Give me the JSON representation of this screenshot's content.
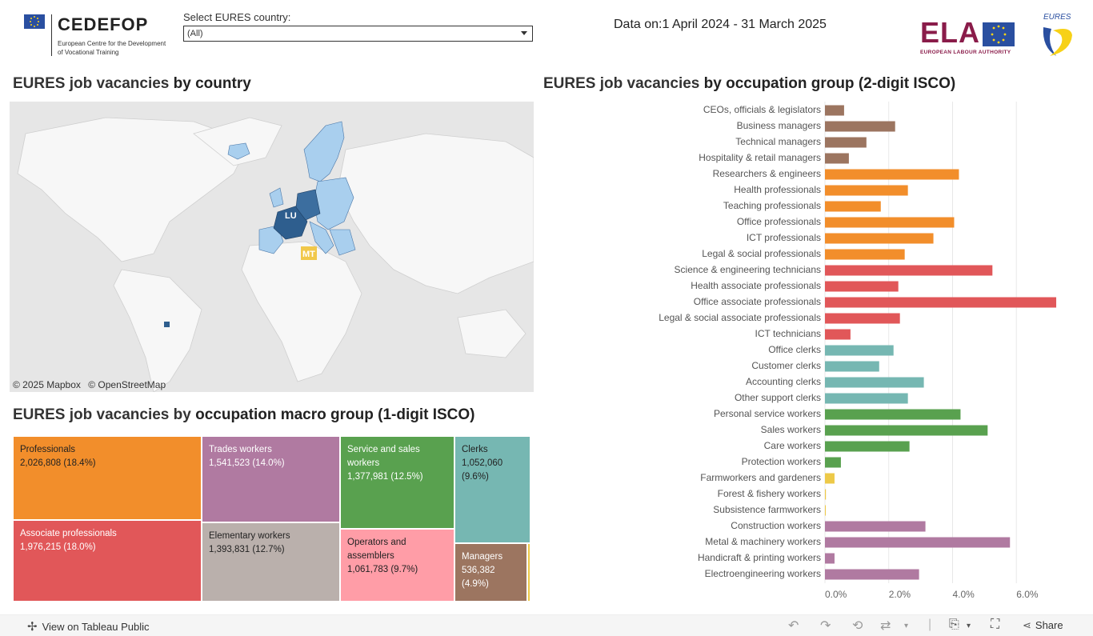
{
  "header": {
    "cedefop_logo": "CEDEFOP",
    "cedefop_sub": "European Centre for the Development of Vocational Training",
    "select_label": "Select EURES country:",
    "select_value": "(All)",
    "data_on": "Data on:1 April 2024 - 31 March 2025",
    "ela_logo": "ELA",
    "ela_sub": "EUROPEAN LABOUR AUTHORITY",
    "eures_logo": "EURES"
  },
  "map_section": {
    "title_light": "EURES job vacancies ",
    "title_bold": "by country",
    "label_lu": "LU",
    "label_mt": "MT",
    "attribution_mapbox": "© 2025 Mapbox",
    "attribution_osm": "© OpenStreetMap"
  },
  "bar_section": {
    "title_light": "EURES job vacancies ",
    "title_bold": "by occupation group (2-digit ISCO)"
  },
  "treemap_section": {
    "title_light": "EURES job vacancies by ",
    "title_bold": "occupation macro group (1-digit ISCO)"
  },
  "colors": {
    "managers": "#9c7560",
    "professionals": "#f28e2b",
    "technicians": "#e15759",
    "clerks": "#76b7b2",
    "service": "#59a14f",
    "agriculture": "#edc948",
    "trades": "#b07aa1",
    "operators": "#ff9da7",
    "elementary": "#bab0ac"
  },
  "chart_data": [
    {
      "type": "bar",
      "orientation": "horizontal",
      "title": "EURES job vacancies by occupation group (2-digit ISCO)",
      "xlabel": "",
      "ylabel": "",
      "xlim": [
        0,
        7.5
      ],
      "x_ticks": [
        "0.0%",
        "2.0%",
        "4.0%",
        "6.0%"
      ],
      "x_tick_values": [
        0,
        2,
        4,
        6
      ],
      "grid": true,
      "categories": [
        "CEOs, officials & legislators",
        "Business managers",
        "Technical managers",
        "Hospitality & retail managers",
        "Researchers & engineers",
        "Health professionals",
        "Teaching professionals",
        "Office professionals",
        "ICT professionals",
        "Legal & social professionals",
        "Science & engineering technicians",
        "Health associate professionals",
        "Office associate professionals",
        "Legal & social associate professionals",
        "ICT technicians",
        "Office clerks",
        "Customer clerks",
        "Accounting clerks",
        "Other support clerks",
        "Personal service workers",
        "Sales workers",
        "Care workers",
        "Protection workers",
        "Farmworkers and gardeners",
        "Forest & fishery workers",
        "Subsistence farmworkers",
        "Construction workers",
        "Metal & machinery workers",
        "Handicraft & printing workers",
        "Electroengineering workers"
      ],
      "values": [
        0.6,
        2.2,
        1.3,
        0.75,
        4.2,
        2.6,
        1.75,
        4.05,
        3.4,
        2.5,
        5.25,
        2.3,
        7.25,
        2.35,
        0.8,
        2.15,
        1.7,
        3.1,
        2.6,
        4.25,
        5.1,
        2.65,
        0.5,
        0.3,
        0.03,
        0.02,
        3.15,
        5.8,
        0.3,
        2.95
      ],
      "groups": [
        "managers",
        "managers",
        "managers",
        "managers",
        "professionals",
        "professionals",
        "professionals",
        "professionals",
        "professionals",
        "professionals",
        "technicians",
        "technicians",
        "technicians",
        "technicians",
        "technicians",
        "clerks",
        "clerks",
        "clerks",
        "clerks",
        "service",
        "service",
        "service",
        "service",
        "agriculture",
        "agriculture",
        "agriculture",
        "trades",
        "trades",
        "trades",
        "trades"
      ]
    },
    {
      "type": "treemap",
      "title": "EURES job vacancies by occupation macro group (1-digit ISCO)",
      "items": [
        {
          "name": "Professionals",
          "value": 2026808,
          "label": "2,026,808 (18.4%)",
          "share": 18.4,
          "group": "professionals"
        },
        {
          "name": "Associate professionals",
          "value": 1976215,
          "label": "1,976,215 (18.0%)",
          "share": 18.0,
          "group": "technicians"
        },
        {
          "name": "Trades workers",
          "value": 1541523,
          "label": "1,541,523 (14.0%)",
          "share": 14.0,
          "group": "trades"
        },
        {
          "name": "Elementary workers",
          "value": 1393831,
          "label": "1,393,831 (12.7%)",
          "share": 12.7,
          "group": "elementary"
        },
        {
          "name": "Service and sales workers",
          "value": 1377981,
          "label": "1,377,981 (12.5%)",
          "share": 12.5,
          "group": "service"
        },
        {
          "name": "Operators and assemblers",
          "value": 1061783,
          "label": "1,061,783 (9.7%)",
          "share": 9.7,
          "group": "operators"
        },
        {
          "name": "Clerks",
          "value": 1052060,
          "label": "1,052,060 (9.6%)",
          "share": 9.6,
          "group": "clerks"
        },
        {
          "name": "Managers",
          "value": 536382,
          "label": "536,382 (4.9%)",
          "share": 4.9,
          "group": "managers"
        },
        {
          "name": "",
          "value": 0,
          "label": "",
          "share": 0.3,
          "group": "agriculture"
        }
      ]
    }
  ],
  "footer": {
    "view_on_tableau": "View on Tableau Public",
    "share": "Share"
  }
}
